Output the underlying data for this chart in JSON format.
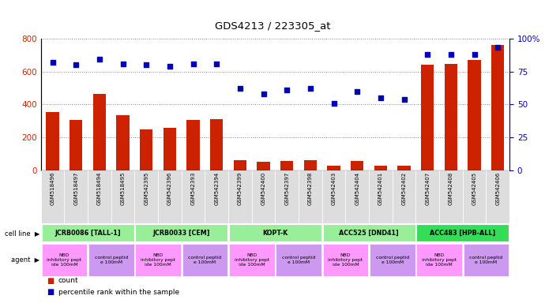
{
  "title": "GDS4213 / 223305_at",
  "samples": [
    "GSM518496",
    "GSM518497",
    "GSM518494",
    "GSM518495",
    "GSM542395",
    "GSM542396",
    "GSM542393",
    "GSM542394",
    "GSM542399",
    "GSM542400",
    "GSM542397",
    "GSM542398",
    "GSM542403",
    "GSM542404",
    "GSM542401",
    "GSM542402",
    "GSM542407",
    "GSM542408",
    "GSM542405",
    "GSM542406"
  ],
  "counts": [
    355,
    305,
    465,
    335,
    250,
    260,
    305,
    310,
    60,
    50,
    55,
    60,
    28,
    55,
    28,
    28,
    640,
    645,
    670,
    760
  ],
  "percentiles_pct": [
    82,
    80,
    84,
    81,
    80,
    79,
    81,
    81,
    62,
    58,
    61,
    62,
    51,
    60,
    55,
    54,
    88,
    88,
    88,
    93
  ],
  "cell_lines": [
    {
      "label": "JCRB0086 [TALL-1]",
      "start": 0,
      "end": 4,
      "color": "#99EE99"
    },
    {
      "label": "JCRB0033 [CEM]",
      "start": 4,
      "end": 8,
      "color": "#99EE99"
    },
    {
      "label": "KOPT-K",
      "start": 8,
      "end": 12,
      "color": "#99EE99"
    },
    {
      "label": "ACC525 [DND41]",
      "start": 12,
      "end": 16,
      "color": "#99EE99"
    },
    {
      "label": "ACC483 [HPB-ALL]",
      "start": 16,
      "end": 20,
      "color": "#33DD55"
    }
  ],
  "agents": [
    {
      "label": "NBD\ninhibitory pept\nide 100mM",
      "start": 0,
      "end": 2,
      "color": "#FF99FF"
    },
    {
      "label": "control peptid\ne 100mM",
      "start": 2,
      "end": 4,
      "color": "#CC99EE"
    },
    {
      "label": "NBD\ninhibitory pept\nide 100mM",
      "start": 4,
      "end": 6,
      "color": "#FF99FF"
    },
    {
      "label": "control peptid\ne 100mM",
      "start": 6,
      "end": 8,
      "color": "#CC99EE"
    },
    {
      "label": "NBD\ninhibitory pept\nide 100mM",
      "start": 8,
      "end": 10,
      "color": "#FF99FF"
    },
    {
      "label": "control peptid\ne 100mM",
      "start": 10,
      "end": 12,
      "color": "#CC99EE"
    },
    {
      "label": "NBD\ninhibitory pept\nide 100mM",
      "start": 12,
      "end": 14,
      "color": "#FF99FF"
    },
    {
      "label": "control peptid\ne 100mM",
      "start": 14,
      "end": 16,
      "color": "#CC99EE"
    },
    {
      "label": "NBD\ninhibitory pept\nide 100mM",
      "start": 16,
      "end": 18,
      "color": "#FF99FF"
    },
    {
      "label": "control peptid\ne 100mM",
      "start": 18,
      "end": 20,
      "color": "#CC99EE"
    }
  ],
  "bar_color": "#CC2200",
  "dot_color": "#0000BB",
  "ylim_left": [
    0,
    800
  ],
  "ylim_right": [
    0,
    100
  ],
  "yticks_left": [
    0,
    200,
    400,
    600,
    800
  ],
  "yticks_right": [
    0,
    25,
    50,
    75,
    100
  ],
  "background_color": "#FFFFFF"
}
